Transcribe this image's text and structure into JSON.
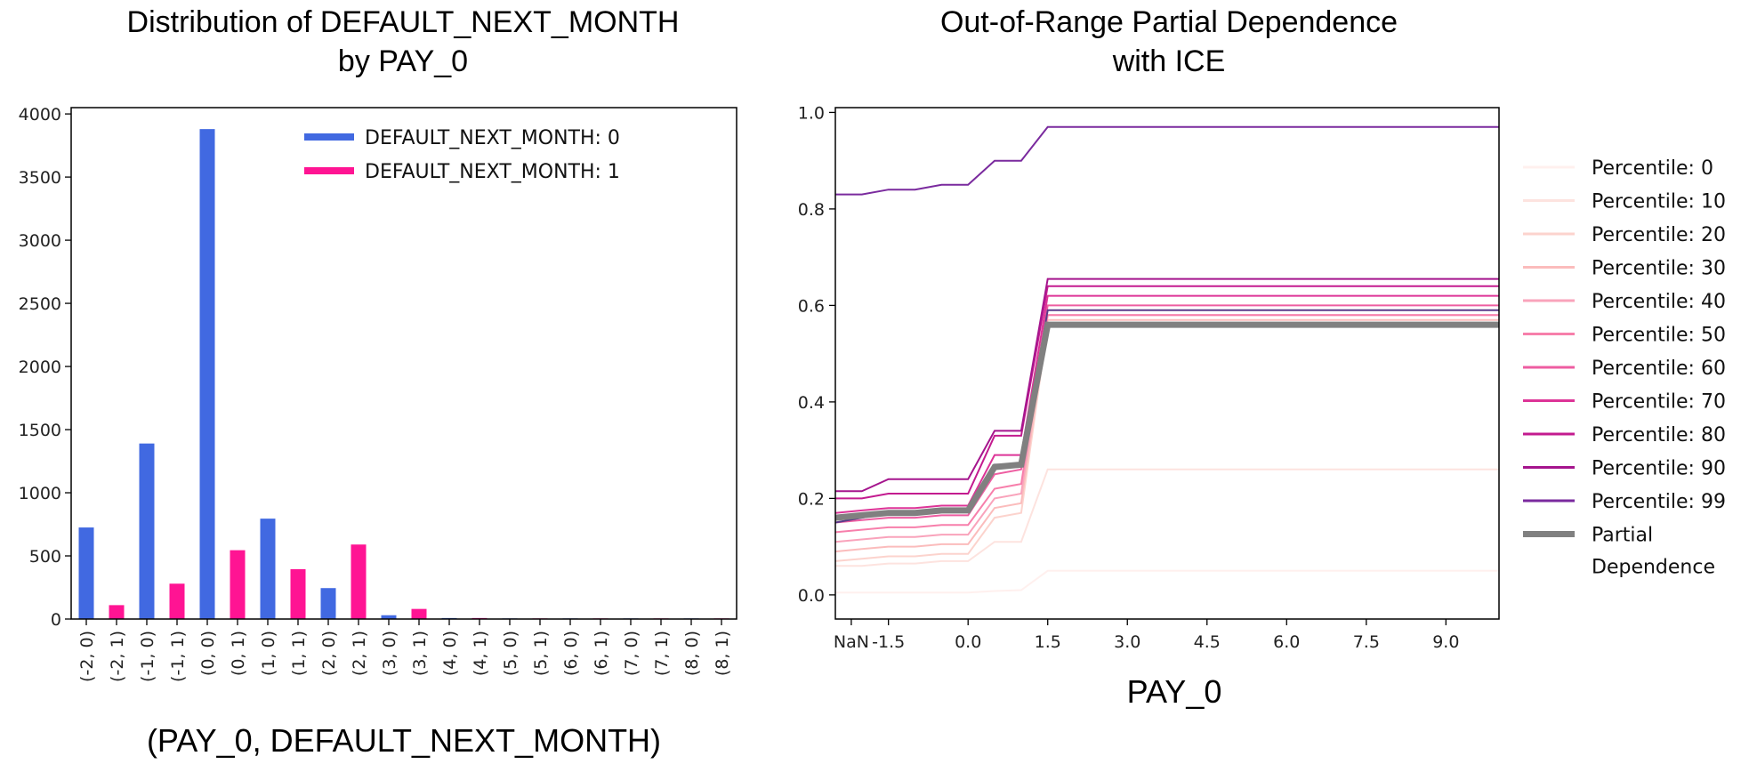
{
  "chart_data": [
    {
      "type": "bar",
      "title_line1": "Distribution of DEFAULT_NEXT_MONTH",
      "title_line2": "by PAY_0",
      "xlabel": "(PAY_0, DEFAULT_NEXT_MONTH)",
      "ylabel": "",
      "ylim": [
        0,
        4050
      ],
      "yticks": [
        "0",
        "500",
        "1000",
        "1500",
        "2000",
        "2500",
        "3000",
        "3500",
        "4000"
      ],
      "categories": [
        "(-2, 0)",
        "(-2, 1)",
        "(-1, 0)",
        "(-1, 1)",
        "(0, 0)",
        "(0, 1)",
        "(1, 0)",
        "(1, 1)",
        "(2, 0)",
        "(2, 1)",
        "(3, 0)",
        "(3, 1)",
        "(4, 0)",
        "(4, 1)",
        "(5, 0)",
        "(5, 1)",
        "(6, 0)",
        "(6, 1)",
        "(7, 0)",
        "(7, 1)",
        "(8, 0)",
        "(8, 1)"
      ],
      "values": [
        725,
        110,
        1390,
        280,
        3880,
        545,
        795,
        395,
        245,
        590,
        30,
        80,
        8,
        8,
        5,
        5,
        5,
        5,
        5,
        5,
        5,
        5
      ],
      "bar_colors": [
        "#4169e1",
        "#ff1493",
        "#4169e1",
        "#ff1493",
        "#4169e1",
        "#ff1493",
        "#4169e1",
        "#ff1493",
        "#4169e1",
        "#ff1493",
        "#4169e1",
        "#ff1493",
        "#4169e1",
        "#ff1493",
        "#4169e1",
        "#ff1493",
        "#4169e1",
        "#ff1493",
        "#4169e1",
        "#ff1493",
        "#4169e1",
        "#ff1493"
      ],
      "legend_position": "top-right",
      "legend": [
        {
          "label": "DEFAULT_NEXT_MONTH: 0",
          "color": "#4169e1"
        },
        {
          "label": "DEFAULT_NEXT_MONTH: 1",
          "color": "#ff1493"
        }
      ],
      "grid": false
    },
    {
      "type": "line",
      "title_line1": "Out-of-Range Partial Dependence",
      "title_line2": "with ICE",
      "xlabel": "PAY_0",
      "ylabel": "",
      "xlim": [
        -2.5,
        10.0
      ],
      "ylim": [
        -0.05,
        1.01
      ],
      "x_tick_labels": [
        "NaN",
        "-1.5",
        "0.0",
        "1.5",
        "3.0",
        "4.5",
        "6.0",
        "7.5",
        "9.0"
      ],
      "x_tick_values": [
        -2.2,
        -1.5,
        0.0,
        1.5,
        3.0,
        4.5,
        6.0,
        7.5,
        9.0
      ],
      "yticks": [
        "0.0",
        "0.2",
        "0.4",
        "0.6",
        "0.8",
        "1.0"
      ],
      "ytick_values": [
        0.0,
        0.2,
        0.4,
        0.6,
        0.8,
        1.0
      ],
      "x": [
        -2.5,
        -2.0,
        -1.5,
        -1.0,
        -0.5,
        0.0,
        0.5,
        1.0,
        1.5,
        10.0
      ],
      "legend_position": "right",
      "series": [
        {
          "name": "Percentile: 0",
          "color": "#fff0ee",
          "width": 2,
          "values": [
            0.005,
            0.005,
            0.005,
            0.005,
            0.005,
            0.005,
            0.008,
            0.01,
            0.05,
            0.05
          ]
        },
        {
          "name": "Percentile: 10",
          "color": "#fde3df",
          "width": 2,
          "values": [
            0.06,
            0.06,
            0.065,
            0.065,
            0.07,
            0.07,
            0.11,
            0.11,
            0.26,
            0.26
          ]
        },
        {
          "name": "Percentile: 20",
          "color": "#fcd3cd",
          "width": 2,
          "values": [
            0.07,
            0.075,
            0.08,
            0.08,
            0.085,
            0.085,
            0.16,
            0.17,
            0.56,
            0.56
          ]
        },
        {
          "name": "Percentile: 30",
          "color": "#fbbcbc",
          "width": 2,
          "values": [
            0.09,
            0.095,
            0.1,
            0.1,
            0.105,
            0.105,
            0.18,
            0.19,
            0.57,
            0.57
          ]
        },
        {
          "name": "Percentile: 40",
          "color": "#f9a3bb",
          "width": 2,
          "values": [
            0.11,
            0.115,
            0.12,
            0.12,
            0.125,
            0.125,
            0.2,
            0.21,
            0.58,
            0.58
          ]
        },
        {
          "name": "Percentile: 50",
          "color": "#f77fab",
          "width": 2,
          "values": [
            0.13,
            0.135,
            0.14,
            0.14,
            0.145,
            0.145,
            0.22,
            0.23,
            0.58,
            0.58
          ]
        },
        {
          "name": "Percentile: 60",
          "color": "#ee5da1",
          "width": 2,
          "values": [
            0.15,
            0.155,
            0.16,
            0.16,
            0.165,
            0.165,
            0.25,
            0.26,
            0.6,
            0.6
          ]
        },
        {
          "name": "Percentile: 70",
          "color": "#dd3497",
          "width": 2,
          "values": [
            0.17,
            0.175,
            0.18,
            0.18,
            0.185,
            0.185,
            0.29,
            0.29,
            0.62,
            0.62
          ]
        },
        {
          "name": "Percentile: 80",
          "color": "#c31b8f",
          "width": 2,
          "values": [
            0.2,
            0.2,
            0.21,
            0.21,
            0.21,
            0.21,
            0.33,
            0.33,
            0.64,
            0.64
          ]
        },
        {
          "name": "Percentile: 90",
          "color": "#a5158d",
          "width": 2,
          "values": [
            0.215,
            0.215,
            0.24,
            0.24,
            0.24,
            0.24,
            0.34,
            0.34,
            0.655,
            0.655
          ]
        },
        {
          "name": "Percentile: 99",
          "color": "#7a2a9e",
          "width": 2,
          "values": [
            0.83,
            0.83,
            0.84,
            0.84,
            0.85,
            0.85,
            0.9,
            0.9,
            0.97,
            0.97
          ]
        },
        {
          "name": "Partial\nDependence",
          "legend_line1": "Partial",
          "legend_line2": "Dependence",
          "color": "#808080",
          "width": 7,
          "values": [
            0.16,
            0.165,
            0.17,
            0.17,
            0.175,
            0.175,
            0.265,
            0.27,
            0.56,
            0.56
          ]
        }
      ],
      "extra_line": {
        "color": "#5a3a8a",
        "width": 2,
        "values": [
          0.15,
          0.16,
          0.17,
          0.17,
          0.175,
          0.175,
          0.27,
          0.27,
          0.59,
          0.59
        ]
      },
      "grid": false
    }
  ]
}
